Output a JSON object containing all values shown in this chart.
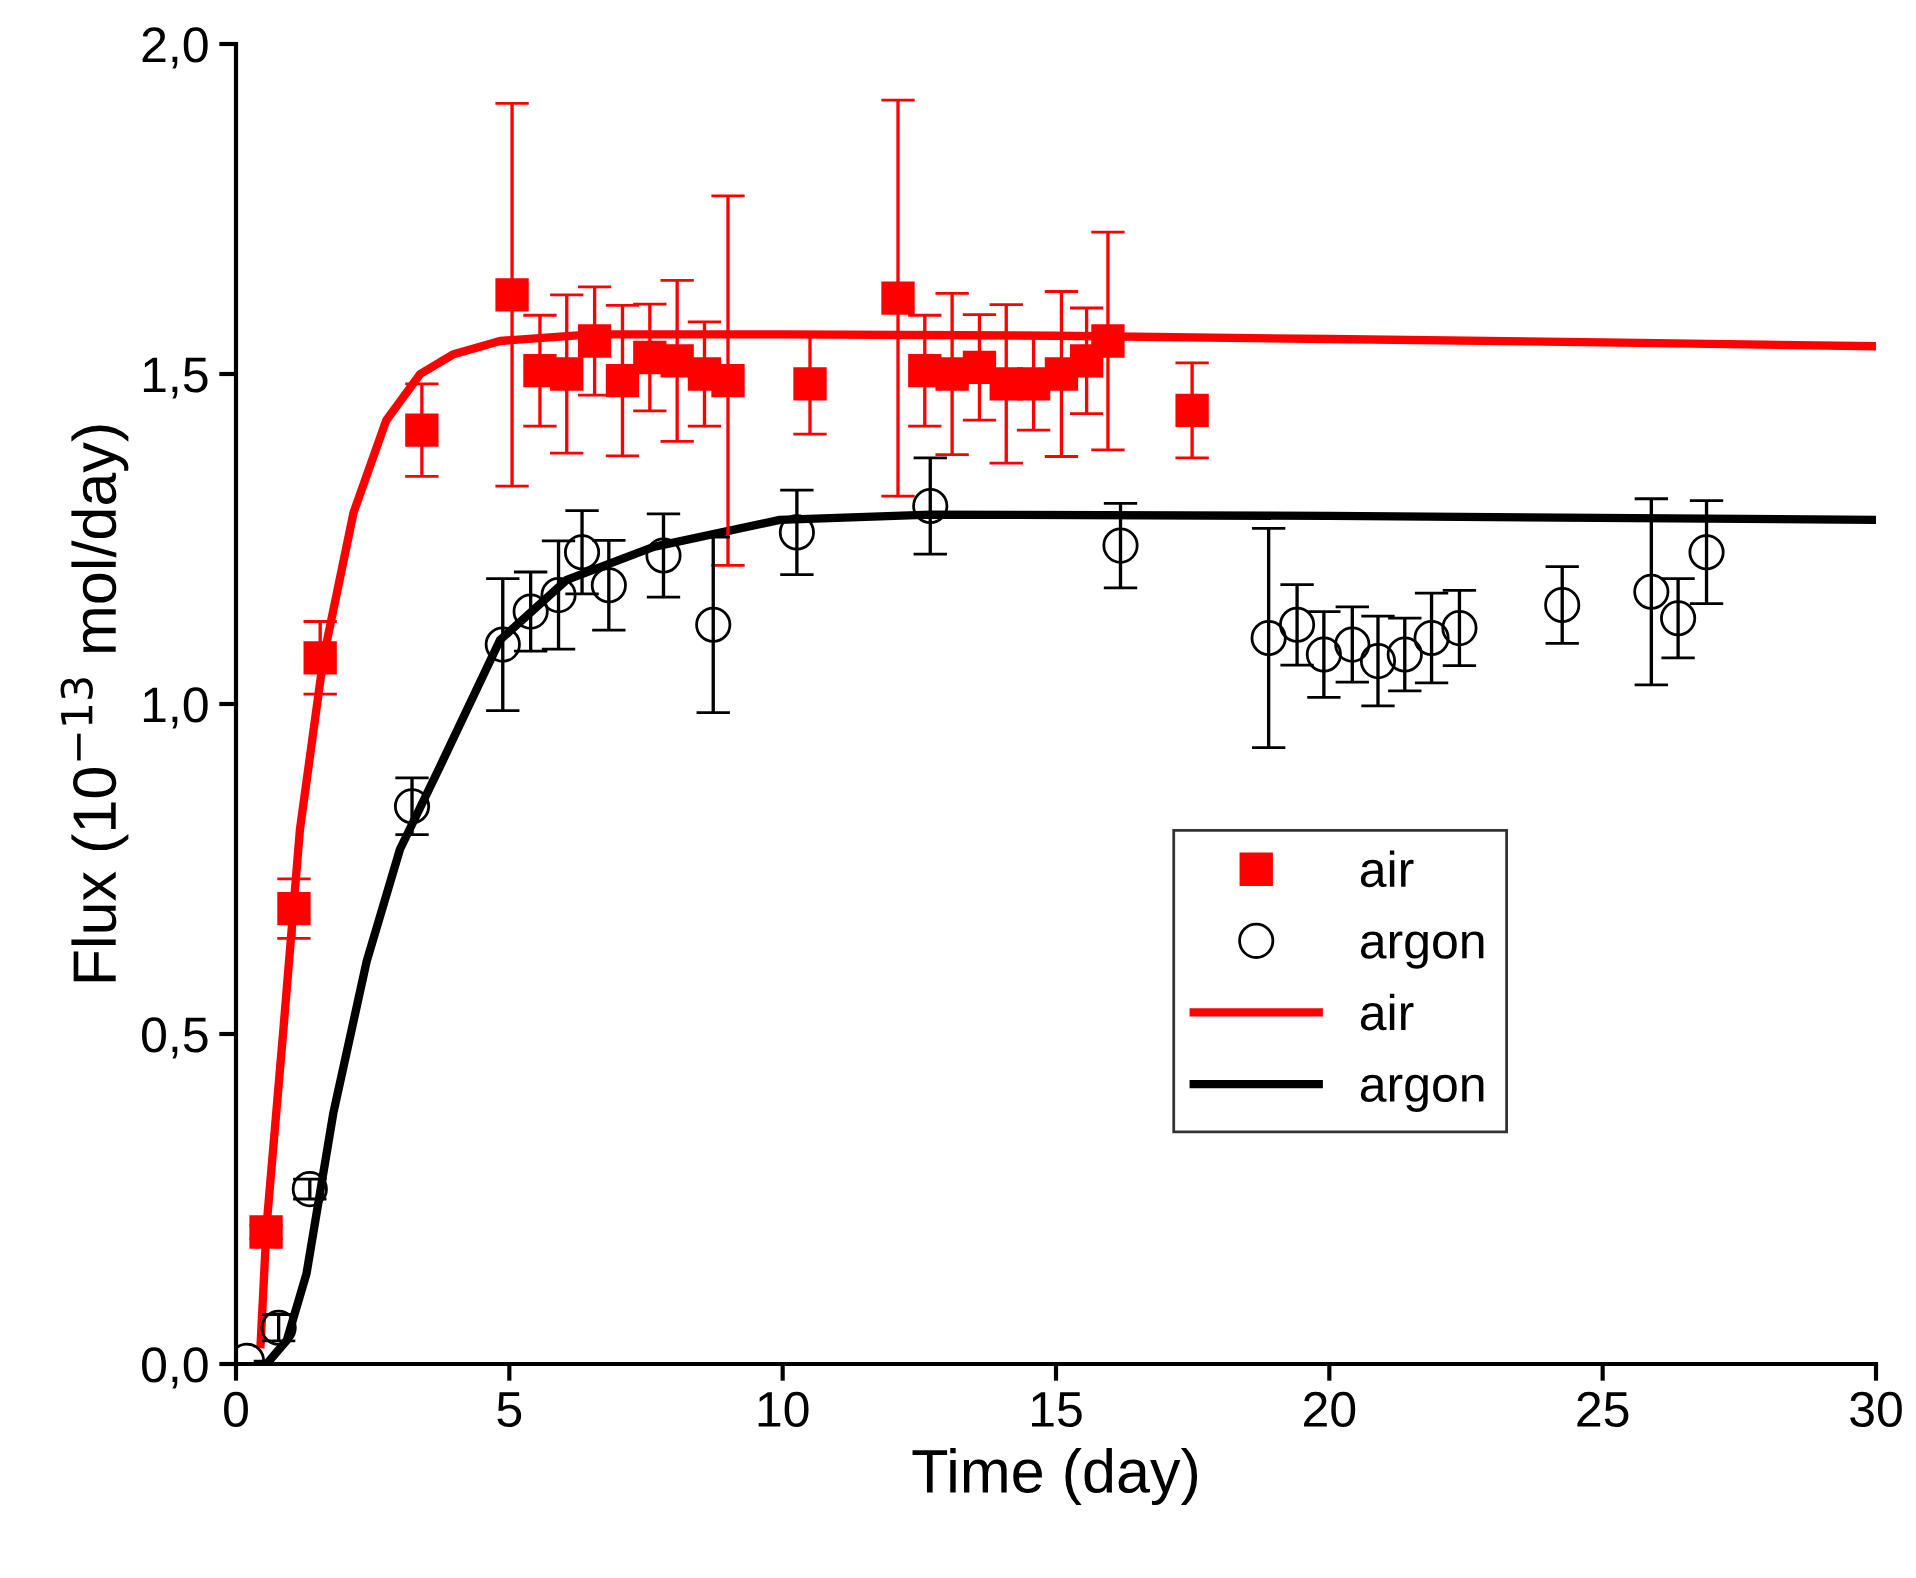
{
  "chart_data": {
    "type": "scatter",
    "xlabel": "Time (day)",
    "ylabel": "Flux (10$^{−13}$ mol/day)",
    "xlim": [
      0,
      30
    ],
    "xticks": [
      0,
      5,
      10,
      15,
      20,
      25,
      30
    ],
    "ylim": [
      0,
      2.0
    ],
    "yticks": [
      {
        "value": 0,
        "label": "0,0"
      },
      {
        "value": 0.5,
        "label": "0,5"
      },
      {
        "value": 1.0,
        "label": "1,0"
      },
      {
        "value": 1.5,
        "label": "1,5"
      },
      {
        "value": 2.0,
        "label": "2,0"
      }
    ],
    "grid": false,
    "legend": "right",
    "series": [
      {
        "name": "air",
        "marker": "square",
        "color": "#ff0000",
        "x": [
          0.55,
          1.06,
          1.54,
          3.4,
          5.05,
          5.56,
          6.05,
          6.56,
          7.07,
          7.57,
          8.07,
          8.57,
          9.0,
          10.5,
          12.11,
          12.6,
          13.1,
          13.6,
          14.09,
          14.59,
          15.1,
          15.56,
          15.95,
          17.49
        ],
        "values": [
          0.2,
          0.69,
          1.07,
          1.415,
          1.62,
          1.505,
          1.5,
          1.55,
          1.49,
          1.525,
          1.52,
          1.5,
          1.49,
          1.485,
          1.615,
          1.505,
          1.5,
          1.51,
          1.485,
          1.485,
          1.5,
          1.52,
          1.55,
          1.445
        ],
        "errors": [
          0.01,
          0.045,
          0.055,
          0.07,
          0.29,
          0.084,
          0.12,
          0.082,
          0.114,
          0.081,
          0.122,
          0.079,
          0.28,
          0.076,
          0.3,
          0.084,
          0.122,
          0.08,
          0.12,
          0.07,
          0.125,
          0.08,
          0.165,
          0.072
        ]
      },
      {
        "name": "argon",
        "marker": "circle",
        "color": "#000000",
        "x": [
          0.2,
          0.78,
          1.35,
          3.22,
          4.88,
          5.39,
          5.9,
          6.33,
          6.82,
          7.82,
          8.73,
          10.26,
          12.7,
          16.18,
          18.89,
          19.41,
          19.9,
          20.42,
          20.89,
          21.38,
          21.87,
          22.38,
          24.26,
          25.89,
          26.38,
          26.9
        ],
        "values": [
          0.005,
          0.055,
          0.265,
          0.845,
          1.09,
          1.14,
          1.165,
          1.23,
          1.18,
          1.225,
          1.12,
          1.26,
          1.3,
          1.24,
          1.1,
          1.12,
          1.075,
          1.09,
          1.065,
          1.075,
          1.1,
          1.115,
          1.15,
          1.17,
          1.13,
          1.23
        ],
        "errors": [
          null,
          0.02,
          0.015,
          0.043,
          0.1,
          0.06,
          0.082,
          0.063,
          0.068,
          0.063,
          0.133,
          0.064,
          0.073,
          0.064,
          0.166,
          0.061,
          0.065,
          0.057,
          0.068,
          0.055,
          0.068,
          0.057,
          0.058,
          0.141,
          0.06,
          0.078
        ]
      },
      {
        "name": "air",
        "type": "line",
        "line_style": "solid",
        "color": "#ff0000",
        "x": [
          0.45,
          0.56,
          0.87,
          1.17,
          1.6,
          2.15,
          2.75,
          3.37,
          3.98,
          4.83,
          6.5,
          10,
          15,
          20,
          25,
          30
        ],
        "values": [
          0.03,
          0.21,
          0.51,
          0.81,
          1.07,
          1.29,
          1.43,
          1.5,
          1.53,
          1.55,
          1.56,
          1.56,
          1.558,
          1.553,
          1.548,
          1.542
        ]
      },
      {
        "name": "argon",
        "type": "line",
        "line_style": "solid",
        "color": "#000000",
        "x": [
          0.4,
          0.56,
          0.93,
          1.29,
          1.78,
          2.39,
          3.0,
          3.73,
          4.83,
          6.05,
          7.64,
          9.95,
          12.7,
          20,
          30
        ],
        "values": [
          0,
          0,
          0.036,
          0.137,
          0.38,
          0.61,
          0.78,
          0.905,
          1.097,
          1.188,
          1.238,
          1.279,
          1.287,
          1.285,
          1.279
        ]
      }
    ]
  }
}
